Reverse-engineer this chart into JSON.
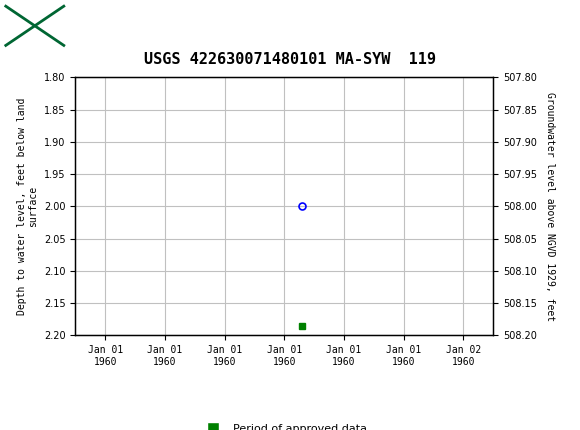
{
  "title": "USGS 422630071480101 MA-SYW  119",
  "left_ylabel": "Depth to water level, feet below land\nsurface",
  "right_ylabel": "Groundwater level above NGVD 1929, feet",
  "ylim_left": [
    1.8,
    2.2
  ],
  "ylim_right": [
    507.8,
    508.2
  ],
  "yticks_left": [
    1.8,
    1.85,
    1.9,
    1.95,
    2.0,
    2.05,
    2.1,
    2.15,
    2.2
  ],
  "yticks_right": [
    507.8,
    507.85,
    507.9,
    507.95,
    508.0,
    508.05,
    508.1,
    508.15,
    508.2
  ],
  "xtick_positions": [
    -3,
    -2,
    -1,
    0,
    1,
    2,
    3
  ],
  "xtick_labels": [
    "Jan 01\n1960",
    "Jan 01\n1960",
    "Jan 01\n1960",
    "Jan 01\n1960",
    "Jan 01\n1960",
    "Jan 01\n1960",
    "Jan 02\n1960"
  ],
  "xlim": [
    -3.5,
    3.5
  ],
  "data_point_x": 0.3,
  "data_point_y": 2.0,
  "data_point_color": "#0000ff",
  "bar_x": 0.3,
  "bar_y": 2.185,
  "bar_color": "#008000",
  "header_color": "#006633",
  "grid_color": "#c0c0c0",
  "bg_color": "#ffffff",
  "legend_label": "Period of approved data",
  "legend_color": "#008000",
  "font_color": "#000000"
}
